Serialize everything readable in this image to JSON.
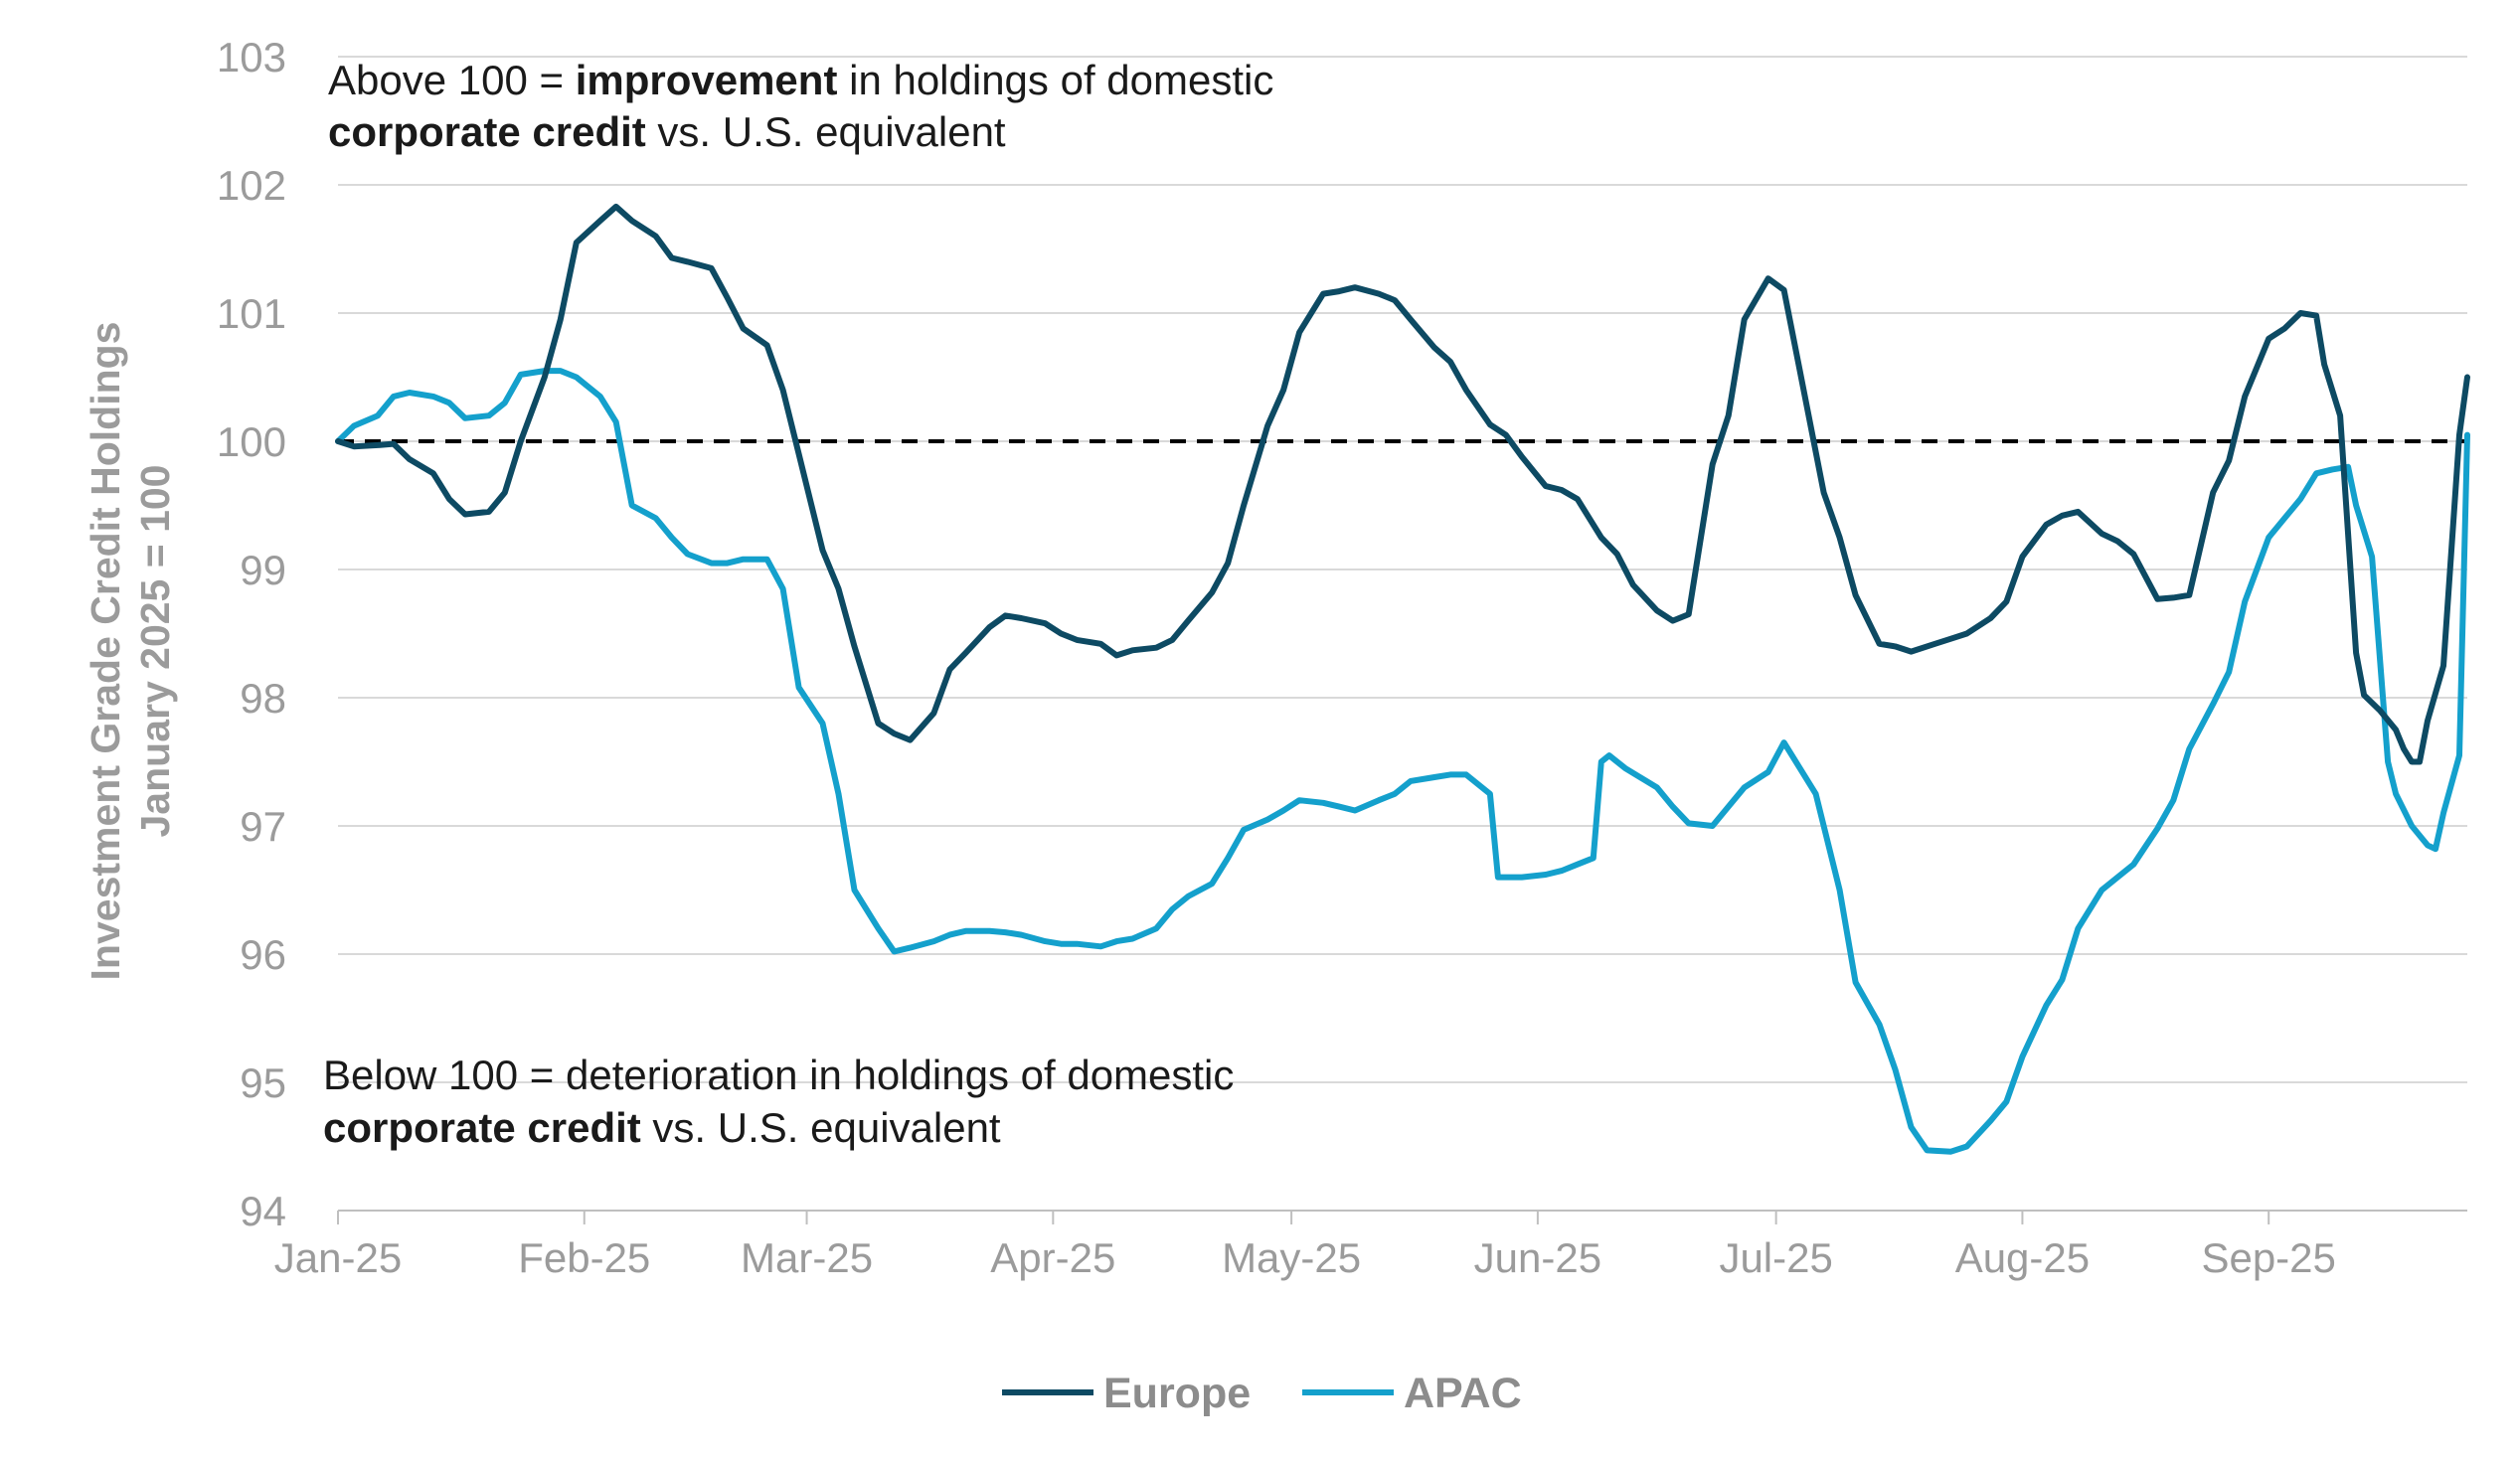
{
  "colors": {
    "europe": "#0d4a63",
    "apac": "#14a0cc",
    "grid": "#d9d9d9",
    "axis_text": "#9b9b9b",
    "baseline": "#000000"
  },
  "annotations": {
    "top_line1_a": "Above 100 = ",
    "top_line1_b": "improvement",
    "top_line1_c": " in holdings of domestic",
    "top_line2_a": "corporate credit",
    "top_line2_b": " vs. U.S. equivalent",
    "bottom_line1": "Below 100 = deterioration in holdings of domestic",
    "bottom_line2_a": "corporate credit",
    "bottom_line2_b": " vs. U.S. equivalent"
  },
  "chart_data": {
    "type": "line",
    "title": "",
    "xlabel": "",
    "ylabel_line1": "Investment Grade Credit Holdings",
    "ylabel_line2": "January 2025 = 100",
    "ylim": [
      94,
      103
    ],
    "yticks": [
      "94",
      "95",
      "96",
      "97",
      "98",
      "99",
      "100",
      "101",
      "102",
      "103"
    ],
    "xticks": [
      "Jan-25",
      "Feb-25",
      "Mar-25",
      "Apr-25",
      "May-25",
      "Jun-25",
      "Jul-25",
      "Aug-25",
      "Sep-25"
    ],
    "xlim": [
      "2025-01-01",
      "2025-09-26"
    ],
    "reference_line": 100,
    "grid": "horizontal",
    "legend_position": "bottom-center",
    "series": [
      {
        "name": "Europe",
        "points": [
          [
            "2025-01-01",
            100.0
          ],
          [
            "2025-01-03",
            99.96
          ],
          [
            "2025-01-06",
            99.97
          ],
          [
            "2025-01-08",
            99.98
          ],
          [
            "2025-01-10",
            99.86
          ],
          [
            "2025-01-13",
            99.75
          ],
          [
            "2025-01-15",
            99.55
          ],
          [
            "2025-01-17",
            99.43
          ],
          [
            "2025-01-20",
            99.45
          ],
          [
            "2025-01-22",
            99.6
          ],
          [
            "2025-01-24",
            100.0
          ],
          [
            "2025-01-27",
            100.5
          ],
          [
            "2025-01-29",
            100.95
          ],
          [
            "2025-01-31",
            101.55
          ],
          [
            "2025-02-03",
            101.72
          ],
          [
            "2025-02-05",
            101.83
          ],
          [
            "2025-02-07",
            101.72
          ],
          [
            "2025-02-10",
            101.6
          ],
          [
            "2025-02-12",
            101.43
          ],
          [
            "2025-02-14",
            101.4
          ],
          [
            "2025-02-17",
            101.35
          ],
          [
            "2025-02-19",
            101.12
          ],
          [
            "2025-02-21",
            100.88
          ],
          [
            "2025-02-24",
            100.75
          ],
          [
            "2025-02-26",
            100.4
          ],
          [
            "2025-02-28",
            99.9
          ],
          [
            "2025-03-03",
            99.15
          ],
          [
            "2025-03-05",
            98.85
          ],
          [
            "2025-03-07",
            98.4
          ],
          [
            "2025-03-10",
            97.8
          ],
          [
            "2025-03-12",
            97.72
          ],
          [
            "2025-03-14",
            97.67
          ],
          [
            "2025-03-17",
            97.88
          ],
          [
            "2025-03-19",
            98.22
          ],
          [
            "2025-03-21",
            98.35
          ],
          [
            "2025-03-24",
            98.55
          ],
          [
            "2025-03-26",
            98.64
          ],
          [
            "2025-03-28",
            98.62
          ],
          [
            "2025-03-31",
            98.58
          ],
          [
            "2025-04-02",
            98.5
          ],
          [
            "2025-04-04",
            98.45
          ],
          [
            "2025-04-07",
            98.42
          ],
          [
            "2025-04-09",
            98.33
          ],
          [
            "2025-04-11",
            98.37
          ],
          [
            "2025-04-14",
            98.39
          ],
          [
            "2025-04-16",
            98.45
          ],
          [
            "2025-04-18",
            98.6
          ],
          [
            "2025-04-21",
            98.82
          ],
          [
            "2025-04-23",
            99.05
          ],
          [
            "2025-04-25",
            99.5
          ],
          [
            "2025-04-28",
            100.12
          ],
          [
            "2025-04-30",
            100.4
          ],
          [
            "2025-05-02",
            100.85
          ],
          [
            "2025-05-05",
            101.15
          ],
          [
            "2025-05-07",
            101.17
          ],
          [
            "2025-05-09",
            101.2
          ],
          [
            "2025-05-12",
            101.15
          ],
          [
            "2025-05-14",
            101.1
          ],
          [
            "2025-05-16",
            100.95
          ],
          [
            "2025-05-19",
            100.73
          ],
          [
            "2025-05-21",
            100.62
          ],
          [
            "2025-05-23",
            100.4
          ],
          [
            "2025-05-26",
            100.13
          ],
          [
            "2025-05-28",
            100.05
          ],
          [
            "2025-05-30",
            99.88
          ],
          [
            "2025-06-02",
            99.65
          ],
          [
            "2025-06-04",
            99.62
          ],
          [
            "2025-06-06",
            99.55
          ],
          [
            "2025-06-09",
            99.25
          ],
          [
            "2025-06-11",
            99.12
          ],
          [
            "2025-06-13",
            98.88
          ],
          [
            "2025-06-16",
            98.68
          ],
          [
            "2025-06-18",
            98.6
          ],
          [
            "2025-06-20",
            98.65
          ],
          [
            "2025-06-23",
            99.82
          ],
          [
            "2025-06-25",
            100.2
          ],
          [
            "2025-06-27",
            100.95
          ],
          [
            "2025-06-30",
            101.27
          ],
          [
            "2025-07-02",
            101.18
          ],
          [
            "2025-07-04",
            100.55
          ],
          [
            "2025-07-07",
            99.6
          ],
          [
            "2025-07-09",
            99.25
          ],
          [
            "2025-07-11",
            98.8
          ],
          [
            "2025-07-14",
            98.42
          ],
          [
            "2025-07-16",
            98.4
          ],
          [
            "2025-07-18",
            98.36
          ],
          [
            "2025-07-21",
            98.42
          ],
          [
            "2025-07-23",
            98.46
          ],
          [
            "2025-07-25",
            98.5
          ],
          [
            "2025-07-28",
            98.62
          ],
          [
            "2025-07-30",
            98.75
          ],
          [
            "2025-08-01",
            99.1
          ],
          [
            "2025-08-04",
            99.35
          ],
          [
            "2025-08-06",
            99.42
          ],
          [
            "2025-08-08",
            99.45
          ],
          [
            "2025-08-11",
            99.28
          ],
          [
            "2025-08-13",
            99.22
          ],
          [
            "2025-08-15",
            99.12
          ],
          [
            "2025-08-18",
            98.77
          ],
          [
            "2025-08-20",
            98.78
          ],
          [
            "2025-08-22",
            98.8
          ],
          [
            "2025-08-25",
            99.6
          ],
          [
            "2025-08-27",
            99.85
          ],
          [
            "2025-08-29",
            100.35
          ],
          [
            "2025-09-01",
            100.8
          ],
          [
            "2025-09-03",
            100.88
          ],
          [
            "2025-09-05",
            101.0
          ],
          [
            "2025-09-07",
            100.98
          ],
          [
            "2025-09-08",
            100.6
          ],
          [
            "2025-09-10",
            100.2
          ],
          [
            "2025-09-12",
            98.35
          ],
          [
            "2025-09-13",
            98.02
          ],
          [
            "2025-09-15",
            97.9
          ],
          [
            "2025-09-17",
            97.75
          ],
          [
            "2025-09-18",
            97.6
          ],
          [
            "2025-09-19",
            97.5
          ],
          [
            "2025-09-20",
            97.5
          ],
          [
            "2025-09-21",
            97.82
          ],
          [
            "2025-09-23",
            98.25
          ],
          [
            "2025-09-25",
            100.05
          ],
          [
            "2025-09-26",
            100.5
          ]
        ]
      },
      {
        "name": "APAC",
        "points": [
          [
            "2025-01-01",
            100.0
          ],
          [
            "2025-01-03",
            100.12
          ],
          [
            "2025-01-06",
            100.2
          ],
          [
            "2025-01-08",
            100.35
          ],
          [
            "2025-01-10",
            100.38
          ],
          [
            "2025-01-13",
            100.35
          ],
          [
            "2025-01-15",
            100.3
          ],
          [
            "2025-01-17",
            100.18
          ],
          [
            "2025-01-20",
            100.2
          ],
          [
            "2025-01-22",
            100.3
          ],
          [
            "2025-01-24",
            100.52
          ],
          [
            "2025-01-27",
            100.55
          ],
          [
            "2025-01-29",
            100.55
          ],
          [
            "2025-01-31",
            100.5
          ],
          [
            "2025-02-03",
            100.35
          ],
          [
            "2025-02-05",
            100.15
          ],
          [
            "2025-02-07",
            99.5
          ],
          [
            "2025-02-10",
            99.4
          ],
          [
            "2025-02-12",
            99.25
          ],
          [
            "2025-02-14",
            99.12
          ],
          [
            "2025-02-17",
            99.05
          ],
          [
            "2025-02-19",
            99.05
          ],
          [
            "2025-02-21",
            99.08
          ],
          [
            "2025-02-24",
            99.08
          ],
          [
            "2025-02-26",
            98.85
          ],
          [
            "2025-02-28",
            98.08
          ],
          [
            "2025-03-03",
            97.8
          ],
          [
            "2025-03-05",
            97.25
          ],
          [
            "2025-03-07",
            96.5
          ],
          [
            "2025-03-10",
            96.2
          ],
          [
            "2025-03-12",
            96.02
          ],
          [
            "2025-03-14",
            96.05
          ],
          [
            "2025-03-17",
            96.1
          ],
          [
            "2025-03-19",
            96.15
          ],
          [
            "2025-03-21",
            96.18
          ],
          [
            "2025-03-24",
            96.18
          ],
          [
            "2025-03-26",
            96.17
          ],
          [
            "2025-03-28",
            96.15
          ],
          [
            "2025-03-31",
            96.1
          ],
          [
            "2025-04-02",
            96.08
          ],
          [
            "2025-04-04",
            96.08
          ],
          [
            "2025-04-07",
            96.06
          ],
          [
            "2025-04-09",
            96.1
          ],
          [
            "2025-04-11",
            96.12
          ],
          [
            "2025-04-14",
            96.2
          ],
          [
            "2025-04-16",
            96.35
          ],
          [
            "2025-04-18",
            96.45
          ],
          [
            "2025-04-21",
            96.55
          ],
          [
            "2025-04-23",
            96.75
          ],
          [
            "2025-04-25",
            96.97
          ],
          [
            "2025-04-28",
            97.05
          ],
          [
            "2025-04-30",
            97.12
          ],
          [
            "2025-05-02",
            97.2
          ],
          [
            "2025-05-05",
            97.18
          ],
          [
            "2025-05-07",
            97.15
          ],
          [
            "2025-05-09",
            97.12
          ],
          [
            "2025-05-12",
            97.2
          ],
          [
            "2025-05-14",
            97.25
          ],
          [
            "2025-05-16",
            97.35
          ],
          [
            "2025-05-19",
            97.38
          ],
          [
            "2025-05-21",
            97.4
          ],
          [
            "2025-05-23",
            97.4
          ],
          [
            "2025-05-26",
            97.25
          ],
          [
            "2025-05-27",
            96.6
          ],
          [
            "2025-05-30",
            96.6
          ],
          [
            "2025-06-02",
            96.62
          ],
          [
            "2025-06-04",
            96.65
          ],
          [
            "2025-06-06",
            96.7
          ],
          [
            "2025-06-08",
            96.75
          ],
          [
            "2025-06-09",
            97.5
          ],
          [
            "2025-06-10",
            97.55
          ],
          [
            "2025-06-12",
            97.45
          ],
          [
            "2025-06-16",
            97.3
          ],
          [
            "2025-06-18",
            97.15
          ],
          [
            "2025-06-20",
            97.02
          ],
          [
            "2025-06-23",
            97.0
          ],
          [
            "2025-06-25",
            97.15
          ],
          [
            "2025-06-27",
            97.3
          ],
          [
            "2025-06-30",
            97.42
          ],
          [
            "2025-07-02",
            97.65
          ],
          [
            "2025-07-04",
            97.45
          ],
          [
            "2025-07-06",
            97.25
          ],
          [
            "2025-07-09",
            96.5
          ],
          [
            "2025-07-11",
            95.78
          ],
          [
            "2025-07-14",
            95.45
          ],
          [
            "2025-07-16",
            95.1
          ],
          [
            "2025-07-18",
            94.65
          ],
          [
            "2025-07-20",
            94.47
          ],
          [
            "2025-07-23",
            94.46
          ],
          [
            "2025-07-25",
            94.5
          ],
          [
            "2025-07-28",
            94.7
          ],
          [
            "2025-07-30",
            94.85
          ],
          [
            "2025-08-01",
            95.2
          ],
          [
            "2025-08-04",
            95.6
          ],
          [
            "2025-08-06",
            95.8
          ],
          [
            "2025-08-08",
            96.2
          ],
          [
            "2025-08-11",
            96.5
          ],
          [
            "2025-08-13",
            96.6
          ],
          [
            "2025-08-15",
            96.7
          ],
          [
            "2025-08-18",
            96.98
          ],
          [
            "2025-08-20",
            97.2
          ],
          [
            "2025-08-22",
            97.6
          ],
          [
            "2025-08-25",
            97.95
          ],
          [
            "2025-08-27",
            98.2
          ],
          [
            "2025-08-29",
            98.75
          ],
          [
            "2025-09-01",
            99.25
          ],
          [
            "2025-09-03",
            99.4
          ],
          [
            "2025-09-05",
            99.55
          ],
          [
            "2025-09-07",
            99.75
          ],
          [
            "2025-09-09",
            99.78
          ],
          [
            "2025-09-11",
            99.8
          ],
          [
            "2025-09-12",
            99.5
          ],
          [
            "2025-09-14",
            99.1
          ],
          [
            "2025-09-16",
            97.5
          ],
          [
            "2025-09-17",
            97.25
          ],
          [
            "2025-09-19",
            97.0
          ],
          [
            "2025-09-21",
            96.85
          ],
          [
            "2025-09-22",
            96.82
          ],
          [
            "2025-09-23",
            97.1
          ],
          [
            "2025-09-25",
            97.55
          ],
          [
            "2025-09-26",
            100.05
          ]
        ]
      }
    ]
  }
}
